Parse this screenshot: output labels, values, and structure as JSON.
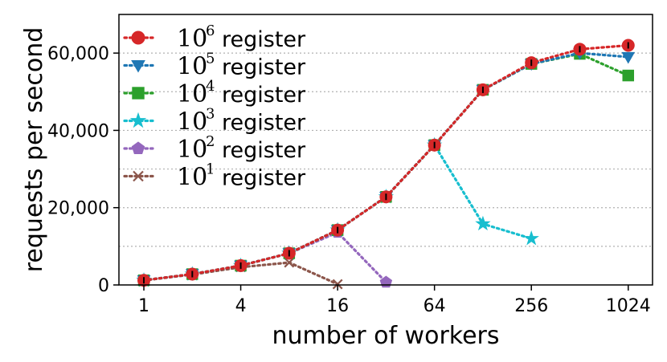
{
  "chart_data": {
    "type": "line",
    "title": "",
    "xlabel": "number of workers",
    "ylabel": "requests per second",
    "x_scale": "log2",
    "xlim": [
      0.7,
      1450
    ],
    "ylim": [
      0,
      70000
    ],
    "x_ticks": [
      1,
      4,
      16,
      64,
      256,
      1024
    ],
    "x_tick_labels": [
      "1",
      "4",
      "16",
      "64",
      "256",
      "1024"
    ],
    "y_ticks": [
      0,
      20000,
      40000,
      60000
    ],
    "y_tick_labels": [
      "0",
      "20,000",
      "40,000",
      "60,000"
    ],
    "grid": "horizontal-dotted",
    "legend_position": "top-left",
    "series": [
      {
        "name_base": "10",
        "name_exp": "6",
        "name_suffix": "register",
        "color": "#d62728",
        "marker": "circle",
        "x": [
          1,
          2,
          4,
          8,
          16,
          32,
          64,
          128,
          256,
          512,
          1024
        ],
        "y": [
          1200,
          2800,
          5000,
          8200,
          14200,
          22800,
          36200,
          50500,
          57500,
          61000,
          62000
        ]
      },
      {
        "name_base": "10",
        "name_exp": "5",
        "name_suffix": "register",
        "color": "#1f77b4",
        "marker": "triangle-down",
        "x": [
          1,
          2,
          4,
          8,
          16,
          32,
          64,
          128,
          256,
          512,
          1024
        ],
        "y": [
          1200,
          2800,
          5000,
          8200,
          14200,
          22800,
          36200,
          50500,
          57200,
          60000,
          59000
        ]
      },
      {
        "name_base": "10",
        "name_exp": "4",
        "name_suffix": "register",
        "color": "#2ca02c",
        "marker": "square",
        "x": [
          1,
          2,
          4,
          8,
          16,
          32,
          64,
          128,
          256,
          512,
          1024
        ],
        "y": [
          1200,
          2800,
          5000,
          8200,
          14200,
          22800,
          36200,
          50500,
          57200,
          59800,
          54200
        ]
      },
      {
        "name_base": "10",
        "name_exp": "3",
        "name_suffix": "register",
        "color": "#17becf",
        "marker": "star",
        "x": [
          1,
          2,
          4,
          8,
          16,
          32,
          64,
          128,
          256
        ],
        "y": [
          1200,
          2800,
          5000,
          8200,
          14200,
          22800,
          36200,
          15800,
          12000
        ]
      },
      {
        "name_base": "10",
        "name_exp": "2",
        "name_suffix": "register",
        "color": "#9467bd",
        "marker": "pentagon",
        "x": [
          1,
          2,
          4,
          8,
          16,
          32
        ],
        "y": [
          1200,
          2800,
          5000,
          8200,
          13600,
          700
        ]
      },
      {
        "name_base": "10",
        "name_exp": "1",
        "name_suffix": "register",
        "color": "#8c564b",
        "marker": "x",
        "x": [
          1,
          2,
          4,
          8,
          16
        ],
        "y": [
          1200,
          2700,
          4600,
          5800,
          200
        ]
      }
    ]
  }
}
